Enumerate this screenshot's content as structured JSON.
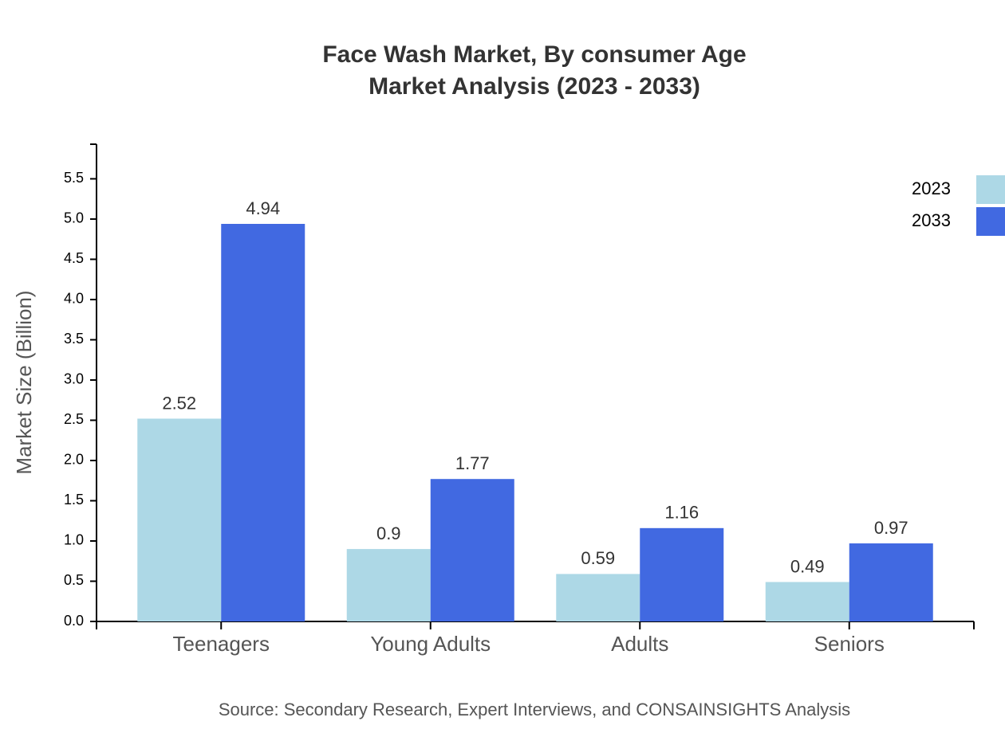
{
  "chart_data": {
    "type": "grouped-bar",
    "title": [
      "Face Wash Market, By consumer Age",
      "Market Analysis (2023 - 2033)"
    ],
    "y_label": "Market Size (Billion)",
    "source": "Source: Secondary Research, Expert Interviews, and CONSAINSIGHTS Analysis",
    "categories": [
      "Teenagers",
      "Young Adults",
      "Adults",
      "Seniors"
    ],
    "series": [
      {
        "name": "2023",
        "color": "#add8e6",
        "values": [
          2.52,
          0.9,
          0.59,
          0.49
        ]
      },
      {
        "name": "2033",
        "color": "#4169e1",
        "values": [
          4.94,
          1.77,
          1.16,
          0.97
        ]
      }
    ],
    "ylim": [
      0,
      5.93
    ],
    "yticks": [
      {
        "value": 0,
        "label": "0.0"
      },
      0.5,
      {
        "value": 1,
        "label": "1.0"
      },
      1.5,
      {
        "value": 2,
        "label": "2.0"
      },
      2.5,
      {
        "value": 3,
        "label": "3.0"
      },
      3.5,
      {
        "value": 4,
        "label": "4.0"
      },
      4.5,
      {
        "value": 5,
        "label": "5.0"
      },
      5.5
    ],
    "legend": "top-right",
    "grid": false
  }
}
